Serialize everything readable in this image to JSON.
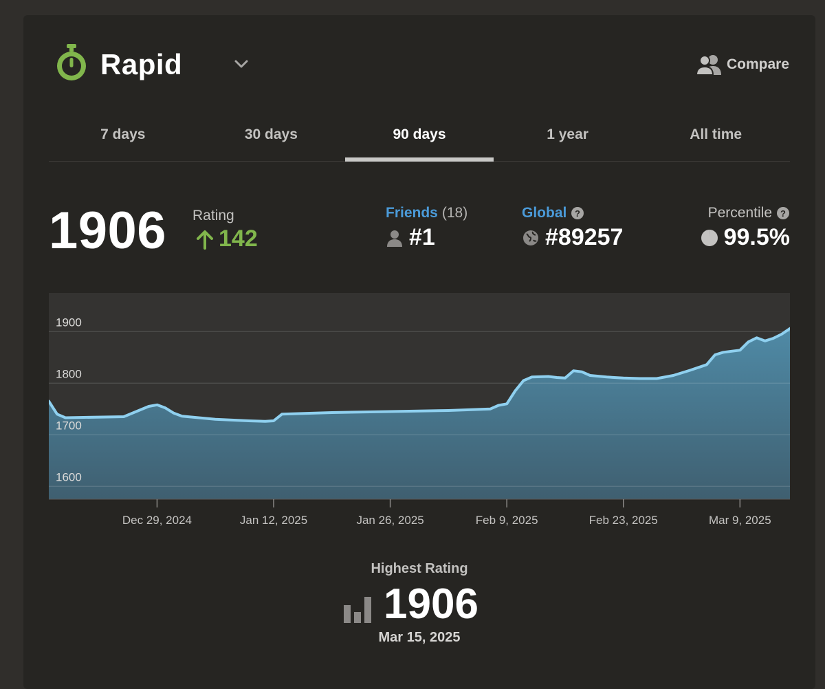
{
  "header": {
    "mode_title": "Rapid",
    "mode_icon": "stopwatch-icon",
    "compare_label": "Compare",
    "accent_color": "#81b64c"
  },
  "tabs": [
    {
      "label": "7 days",
      "active": false
    },
    {
      "label": "30 days",
      "active": false
    },
    {
      "label": "90 days",
      "active": true
    },
    {
      "label": "1 year",
      "active": false
    },
    {
      "label": "All time",
      "active": false
    }
  ],
  "stats": {
    "rating": "1906",
    "rating_label": "Rating",
    "rating_change": "142",
    "friends_label": "Friends",
    "friends_count": "(18)",
    "friends_rank": "#1",
    "global_label": "Global",
    "global_rank": "#89257",
    "percentile_label": "Percentile",
    "percentile_value": "99.5%"
  },
  "chart_data": {
    "type": "area",
    "ylim": [
      1575,
      1975
    ],
    "yticks": [
      1600,
      1700,
      1800,
      1900
    ],
    "xticks": [
      "Dec 29, 2024",
      "Jan 12, 2025",
      "Jan 26, 2025",
      "Feb 9, 2025",
      "Feb 23, 2025",
      "Mar 9, 2025"
    ],
    "x_start": "2024-12-16",
    "x_end": "2025-03-15",
    "grid": true,
    "line_color": "#8fd0ef",
    "series": [
      {
        "points": [
          [
            "2024-12-16",
            1765
          ],
          [
            "2024-12-17",
            1740
          ],
          [
            "2024-12-18",
            1733
          ],
          [
            "2024-12-25",
            1735
          ],
          [
            "2024-12-28",
            1755
          ],
          [
            "2024-12-29",
            1758
          ],
          [
            "2024-12-30",
            1752
          ],
          [
            "2024-12-31",
            1742
          ],
          [
            "2025-01-01",
            1736
          ],
          [
            "2025-01-05",
            1730
          ],
          [
            "2025-01-09",
            1727
          ],
          [
            "2025-01-11",
            1726
          ],
          [
            "2025-01-12",
            1727
          ],
          [
            "2025-01-13",
            1740
          ],
          [
            "2025-01-19",
            1743
          ],
          [
            "2025-01-26",
            1745
          ],
          [
            "2025-02-02",
            1747
          ],
          [
            "2025-02-07",
            1750
          ],
          [
            "2025-02-08",
            1757
          ],
          [
            "2025-02-09",
            1760
          ],
          [
            "2025-02-10",
            1785
          ],
          [
            "2025-02-11",
            1805
          ],
          [
            "2025-02-12",
            1812
          ],
          [
            "2025-02-14",
            1813
          ],
          [
            "2025-02-15",
            1811
          ],
          [
            "2025-02-16",
            1810
          ],
          [
            "2025-02-17",
            1824
          ],
          [
            "2025-02-18",
            1822
          ],
          [
            "2025-02-19",
            1815
          ],
          [
            "2025-02-21",
            1812
          ],
          [
            "2025-02-23",
            1810
          ],
          [
            "2025-02-25",
            1809
          ],
          [
            "2025-02-27",
            1809
          ],
          [
            "2025-03-01",
            1815
          ],
          [
            "2025-03-03",
            1825
          ],
          [
            "2025-03-05",
            1836
          ],
          [
            "2025-03-06",
            1855
          ],
          [
            "2025-03-07",
            1860
          ],
          [
            "2025-03-09",
            1864
          ],
          [
            "2025-03-10",
            1880
          ],
          [
            "2025-03-11",
            1888
          ],
          [
            "2025-03-12",
            1882
          ],
          [
            "2025-03-13",
            1887
          ],
          [
            "2025-03-14",
            1895
          ],
          [
            "2025-03-15",
            1906
          ]
        ]
      }
    ]
  },
  "highest": {
    "label": "Highest Rating",
    "value": "1906",
    "date": "Mar 15, 2025"
  }
}
